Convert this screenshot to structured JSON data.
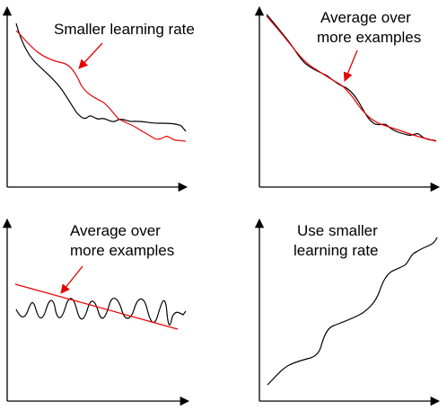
{
  "colors": {
    "axis": "#000000",
    "black_curve": "#000000",
    "red_curve": "#e60000",
    "annotation": "#e60000"
  },
  "panels": [
    {
      "id": "top-left",
      "caption_lines": [
        "Smaller learning rate"
      ],
      "curves": [
        "black",
        "red"
      ],
      "arrow": true
    },
    {
      "id": "top-right",
      "caption_lines": [
        "Average over",
        "more examples"
      ],
      "curves": [
        "black",
        "red"
      ],
      "arrow": true
    },
    {
      "id": "bottom-left",
      "caption_lines": [
        "Average over",
        "more examples"
      ],
      "curves": [
        "black",
        "red"
      ],
      "arrow": true
    },
    {
      "id": "bottom-right",
      "caption_lines": [
        "Use smaller",
        "learning rate"
      ],
      "curves": [
        "black"
      ],
      "arrow": false
    }
  ]
}
